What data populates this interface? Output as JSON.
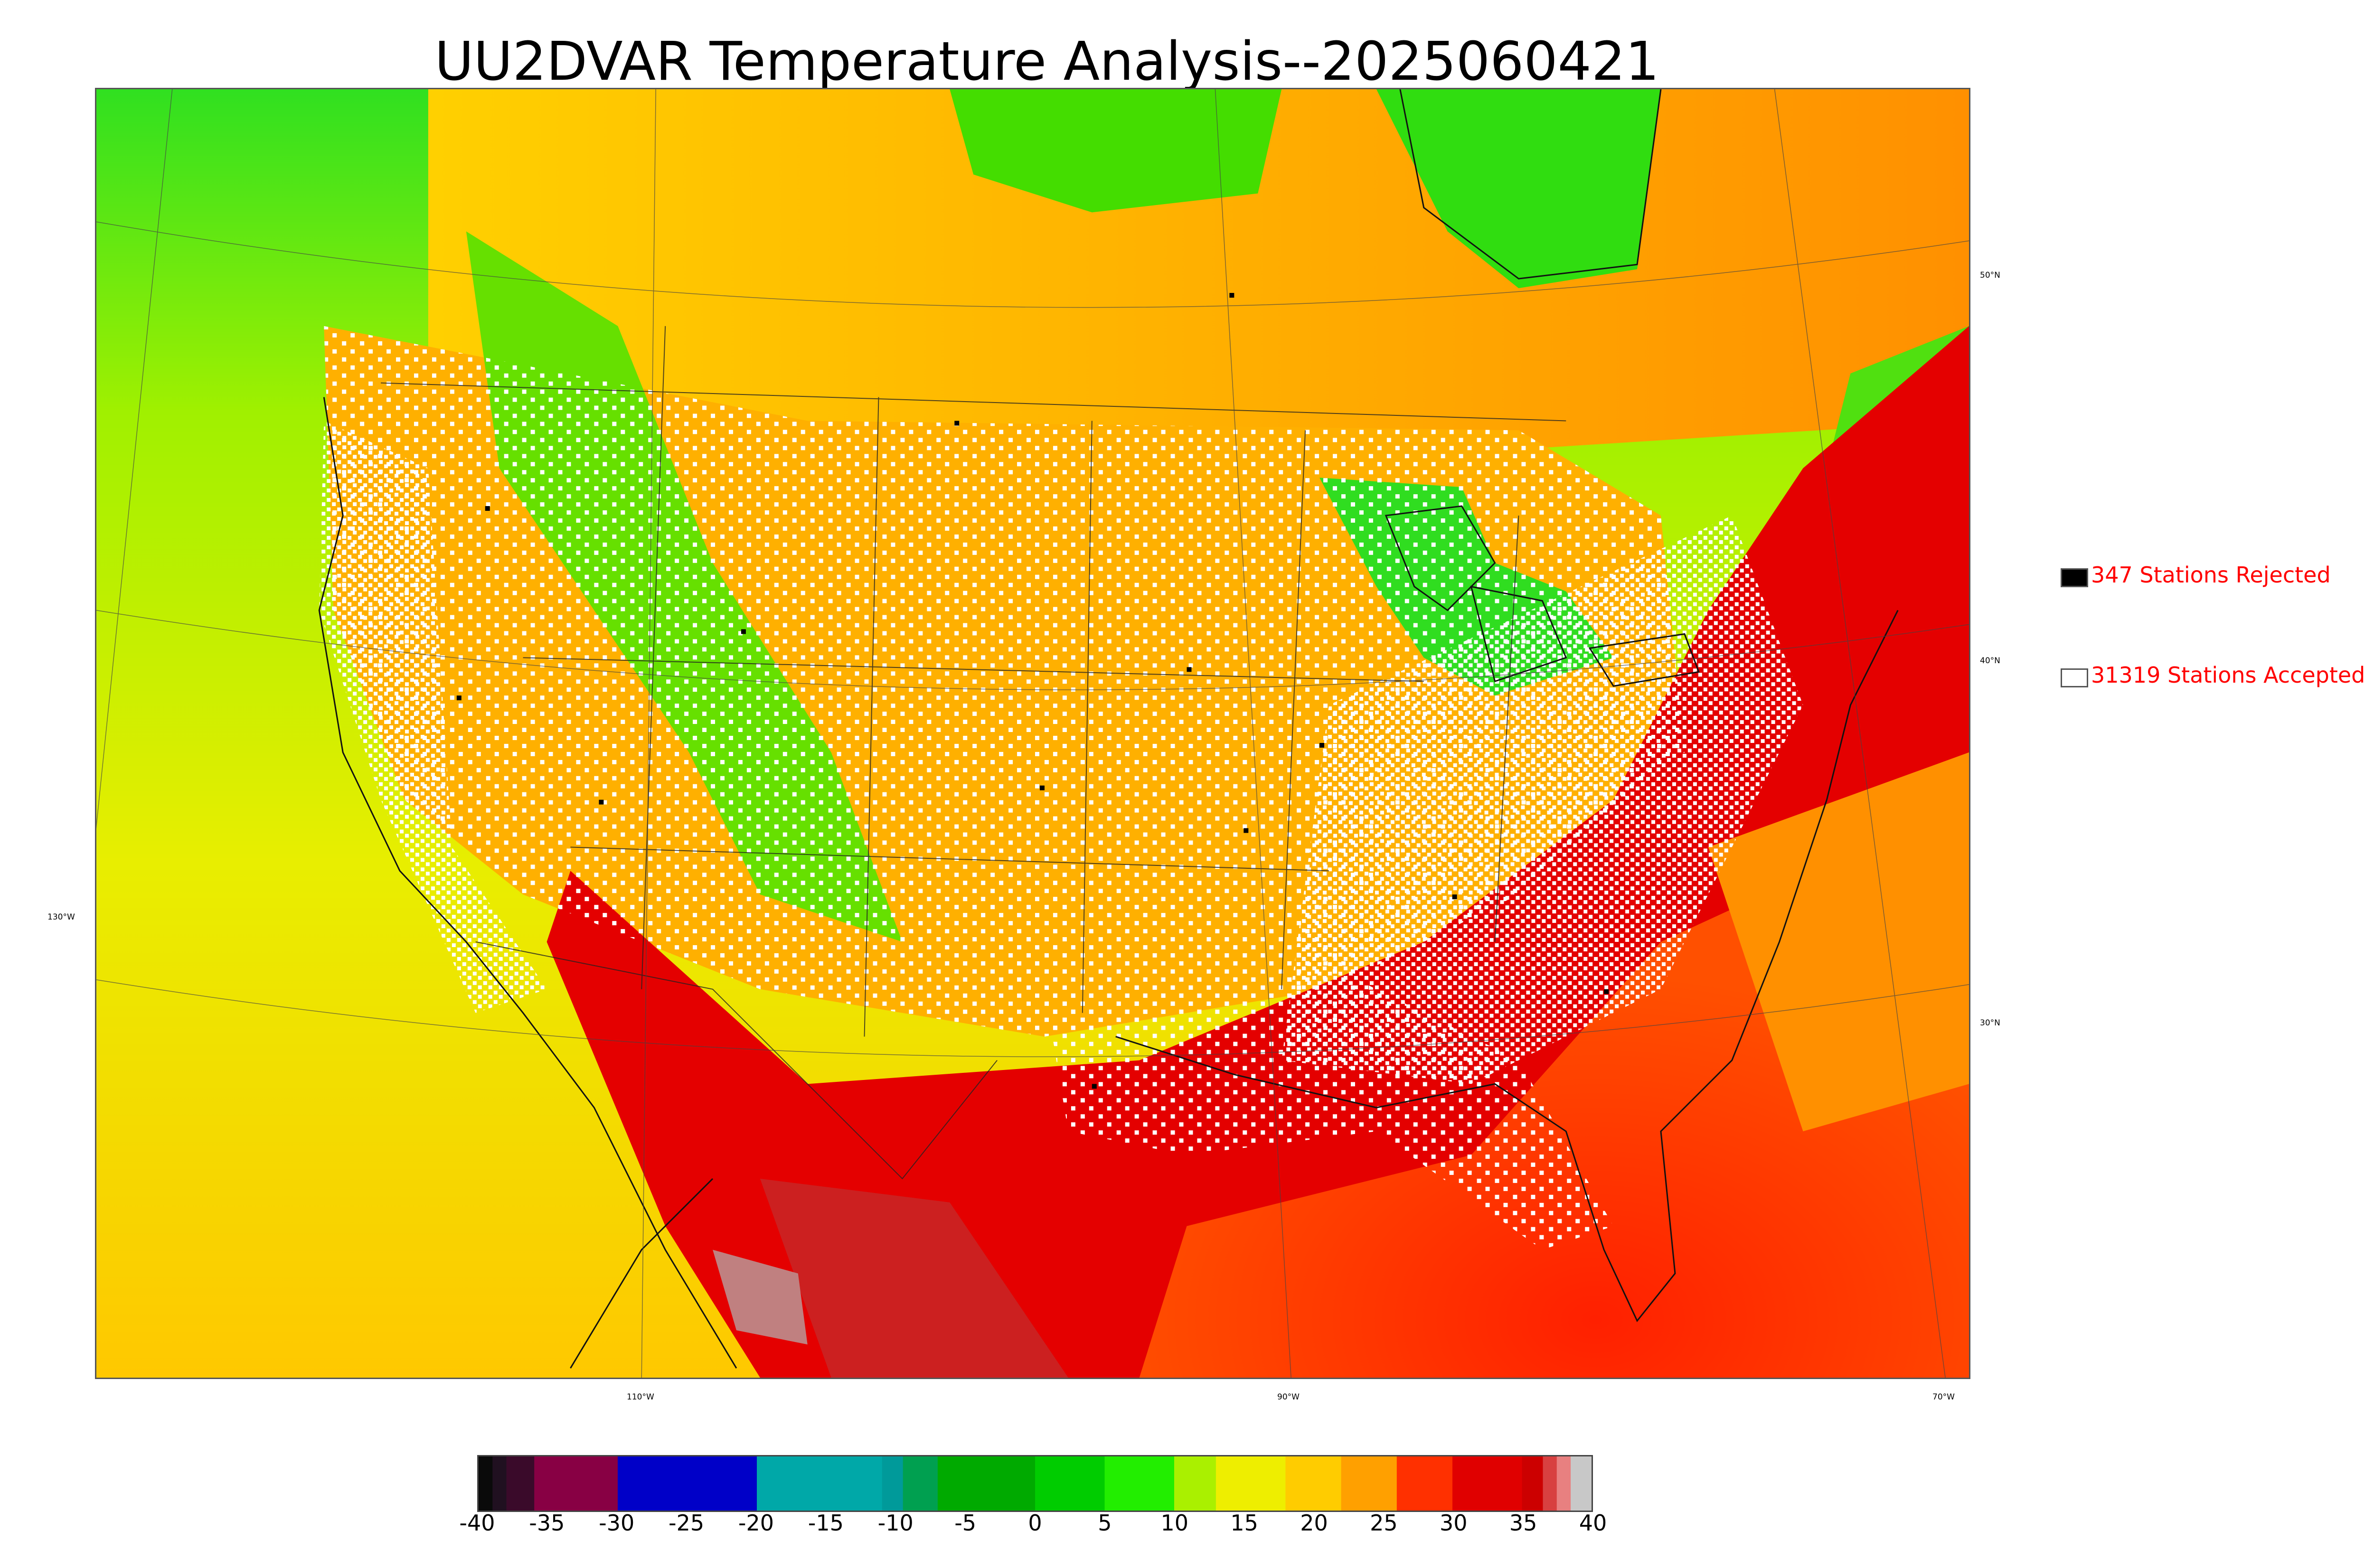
{
  "title": "UU2DVAR Temperature Analysis--2025060421",
  "map": {
    "lat_labels": [
      "50°N",
      "40°N",
      "30°N"
    ],
    "lon_labels": [
      "130°W",
      "110°W",
      "90°W",
      "70°W"
    ]
  },
  "legend": {
    "rejected": {
      "text": "347 Stations Rejected",
      "swatch_color": "#000000",
      "text_color": "#ff0000"
    },
    "accepted": {
      "text": "31319 Stations Accepted",
      "swatch_color": "#ffffff",
      "text_color": "#ff0000"
    }
  },
  "colorbar": {
    "min": -40,
    "max": 40,
    "ticks": [
      "-40",
      "-35",
      "-30",
      "-25",
      "-20",
      "-15",
      "-10",
      "-5",
      "0",
      "5",
      "10",
      "15",
      "20",
      "25",
      "30",
      "35",
      "40"
    ],
    "colors": [
      {
        "from": -40,
        "to": -39,
        "color": "#0a0a0a"
      },
      {
        "from": -39,
        "to": -38,
        "color": "#201020"
      },
      {
        "from": -38,
        "to": -36,
        "color": "#3a0a2a"
      },
      {
        "from": -36,
        "to": -30,
        "color": "#880044"
      },
      {
        "from": -30,
        "to": -20,
        "color": "#0000c8"
      },
      {
        "from": -20,
        "to": -11,
        "color": "#00a8a8"
      },
      {
        "from": -11,
        "to": -9.5,
        "color": "#009a9a"
      },
      {
        "from": -9.5,
        "to": -7,
        "color": "#00a050"
      },
      {
        "from": -7,
        "to": 0,
        "color": "#00aa00"
      },
      {
        "from": 0,
        "to": 5,
        "color": "#00cc00"
      },
      {
        "from": 5,
        "to": 10,
        "color": "#22ee00"
      },
      {
        "from": 10,
        "to": 13,
        "color": "#aaf000"
      },
      {
        "from": 13,
        "to": 18,
        "color": "#eeee00"
      },
      {
        "from": 18,
        "to": 22,
        "color": "#ffcc00"
      },
      {
        "from": 22,
        "to": 26,
        "color": "#ffa000"
      },
      {
        "from": 26,
        "to": 30,
        "color": "#ff3000"
      },
      {
        "from": 30,
        "to": 35,
        "color": "#e00000"
      },
      {
        "from": 35,
        "to": 36.5,
        "color": "#cc0000"
      },
      {
        "from": 36.5,
        "to": 37.5,
        "color": "#d84040"
      },
      {
        "from": 37.5,
        "to": 38.5,
        "color": "#e88080"
      },
      {
        "from": 38.5,
        "to": 40,
        "color": "#c8c8c8"
      }
    ]
  }
}
